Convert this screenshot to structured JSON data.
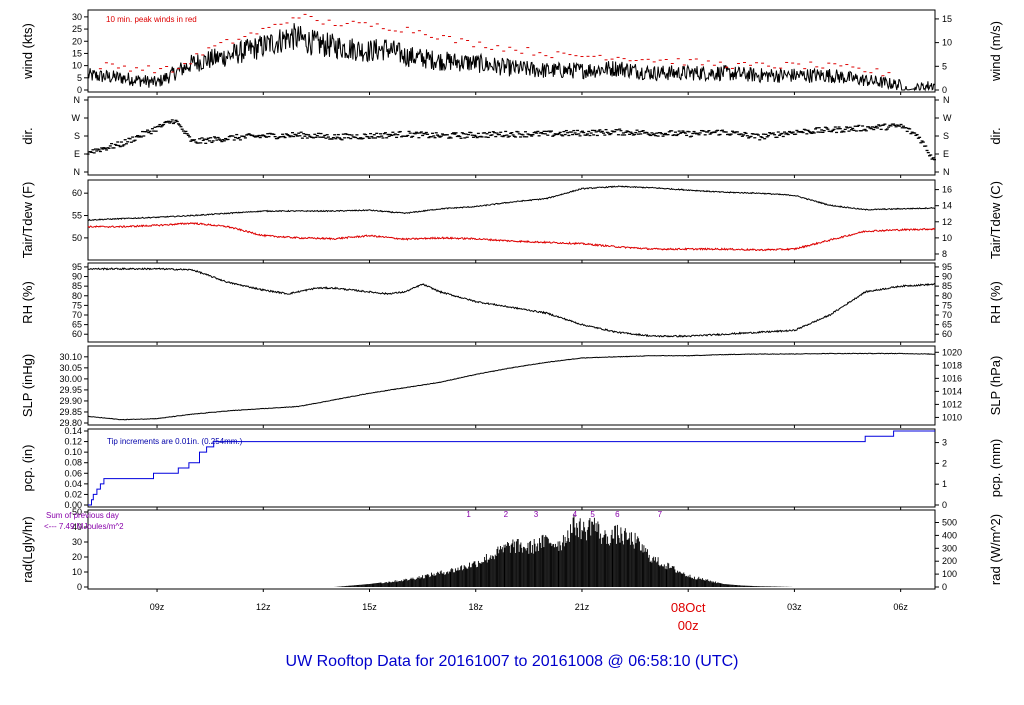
{
  "title": "UW Rooftop Data for 20161007  to  20161008 @ 06:58:10  (UTC)",
  "colors": {
    "title": "#0000cc",
    "date_marker": "#dd0000",
    "tair": "#000000",
    "tdew": "#dd0000",
    "peak": "#dd0000",
    "pcp": "#0000dd",
    "annot_blue": "#0000aa",
    "annot_purple": "#8800aa"
  },
  "x_axis": {
    "tick_labels": [
      "09z",
      "12z",
      "15z",
      "18z",
      "21z",
      "00z",
      "03z",
      "06z"
    ],
    "tick_hours": [
      9,
      12,
      15,
      18,
      21,
      24,
      27,
      30
    ],
    "range_hours": [
      7.05,
      30.97
    ],
    "date_marker_day": "08Oct",
    "date_marker_hour": "00z"
  },
  "chart_data": [
    {
      "type": "line",
      "panel": "wind",
      "ylabel_left": "wind (kts)",
      "ylabel_right": "wind (m/s)",
      "ylim": [
        0,
        32
      ],
      "left_ticks": [
        0,
        5,
        10,
        15,
        20,
        25,
        30
      ],
      "right_ticks": [
        0,
        5,
        10,
        15
      ],
      "right_factor": 0.5144,
      "annotation": "10 min. peak winds in red",
      "series": [
        {
          "name": "wind",
          "x": [
            7.05,
            8,
            9,
            10,
            11,
            12,
            12.8,
            13.5,
            14,
            15,
            15.5,
            16,
            17,
            18,
            19,
            20,
            21,
            22,
            23,
            24,
            25,
            26,
            27,
            28,
            29,
            30,
            30.2,
            30.9
          ],
          "values": [
            6,
            5,
            3,
            11,
            14,
            18,
            22,
            19,
            18,
            16,
            17,
            14,
            12,
            11,
            9,
            8,
            8,
            9,
            7,
            7,
            7,
            6,
            6,
            6,
            4,
            2,
            0,
            2
          ]
        },
        {
          "name": "10 min. peak winds",
          "x": [
            7.5,
            8.5,
            9.5,
            10.5,
            11.5,
            12.5,
            13,
            13.5,
            14.5,
            15.5,
            16.5,
            17.5,
            18.5,
            19.5,
            20.5,
            21.5,
            22.5,
            23.5,
            24.5,
            25.5,
            26.5,
            27.5,
            28.5,
            29.5
          ],
          "values": [
            10,
            9,
            8,
            17,
            22,
            27,
            31,
            28,
            27,
            26,
            24,
            20,
            18,
            16,
            14,
            14,
            13,
            12,
            11,
            10,
            10,
            10,
            9,
            7
          ]
        }
      ]
    },
    {
      "type": "scatter",
      "panel": "dir",
      "ylabel_left": "dir.",
      "ylabel_right": "dir.",
      "tick_labels": [
        "N",
        "W",
        "S",
        "E",
        "N"
      ],
      "tick_degrees": [
        360,
        270,
        180,
        90,
        0
      ],
      "series": [
        {
          "name": "direction",
          "x": [
            7.05,
            8,
            9,
            9.5,
            10,
            11,
            12,
            13,
            14,
            15,
            16,
            17,
            18,
            19,
            20,
            21,
            22,
            23,
            24,
            25,
            26,
            27,
            28,
            29,
            30,
            30.5,
            30.9
          ],
          "values": [
            100,
            140,
            220,
            260,
            150,
            170,
            180,
            185,
            175,
            180,
            190,
            180,
            185,
            190,
            190,
            195,
            200,
            195,
            190,
            200,
            175,
            200,
            210,
            220,
            230,
            180,
            70
          ]
        }
      ]
    },
    {
      "type": "line",
      "panel": "temperature",
      "ylabel_left": "Tair/Tdew (F)",
      "ylabel_right": "Tair/Tdew (C)",
      "ylim": [
        45.5,
        62.5
      ],
      "left_ticks": [
        50,
        55,
        60
      ],
      "right_ticks": [
        8,
        10,
        12,
        14,
        16
      ],
      "series": [
        {
          "name": "Tair",
          "x": [
            7.05,
            8,
            9,
            10,
            11,
            12,
            13,
            14,
            15,
            16,
            17,
            18,
            19,
            20,
            21,
            22,
            23,
            24,
            25,
            26,
            27,
            28,
            29,
            30,
            30.97
          ],
          "values": [
            54,
            54.3,
            54.6,
            55,
            55.5,
            56,
            56,
            56,
            56.2,
            55.5,
            56.5,
            57,
            58,
            58.8,
            61,
            61.5,
            61.2,
            60.7,
            60.2,
            60,
            59.5,
            57.3,
            56.3,
            56.5,
            56.7
          ]
        },
        {
          "name": "Tdew",
          "x": [
            7.05,
            8,
            9,
            10,
            11,
            12,
            13,
            14,
            15,
            16,
            17,
            18,
            19,
            20,
            21,
            22,
            23,
            24,
            25,
            26,
            27,
            28,
            29,
            30,
            30.97
          ],
          "values": [
            52.5,
            52.5,
            52.8,
            53.3,
            52.5,
            50.5,
            50,
            49.8,
            50.5,
            49.7,
            50,
            49.8,
            49.3,
            49,
            48.7,
            48,
            47.5,
            47.5,
            47.5,
            47.3,
            47.5,
            49.5,
            51.5,
            51.8,
            52
          ]
        }
      ]
    },
    {
      "type": "line",
      "panel": "rh",
      "ylabel_left": "RH (%)",
      "ylabel_right": "RH (%)",
      "ylim": [
        57,
        96
      ],
      "left_ticks": [
        60,
        65,
        70,
        75,
        80,
        85,
        90,
        95
      ],
      "right_ticks": [
        60,
        65,
        70,
        75,
        80,
        85,
        90,
        95
      ],
      "series": [
        {
          "name": "RH",
          "x": [
            7.05,
            8,
            9,
            10,
            11,
            12,
            12.7,
            13.5,
            14,
            15,
            15.5,
            16,
            16.5,
            17,
            18,
            19,
            20,
            21,
            22,
            23,
            24,
            25,
            26,
            27,
            28,
            29,
            30,
            30.97
          ],
          "values": [
            94,
            94,
            94,
            93.5,
            87,
            83,
            81,
            84,
            84,
            82,
            81,
            82,
            86,
            82,
            77,
            74,
            71,
            65,
            61,
            59,
            59,
            60,
            61,
            62,
            70,
            82,
            85,
            86
          ]
        }
      ]
    },
    {
      "type": "line",
      "panel": "slp",
      "ylabel_left": "SLP (inHg)",
      "ylabel_right": "SLP (hPa)",
      "ylim": [
        29.8,
        30.14
      ],
      "left_ticks": [
        29.8,
        29.85,
        29.9,
        29.95,
        30.0,
        30.05,
        30.1
      ],
      "right_ticks": [
        1010,
        1012,
        1014,
        1016,
        1018,
        1020
      ],
      "series": [
        {
          "name": "SLP",
          "x": [
            7.05,
            8,
            9,
            10,
            11,
            12,
            13,
            14,
            15,
            16,
            17,
            18,
            19,
            20,
            21,
            22,
            23,
            24,
            25,
            26,
            27,
            28,
            29,
            30,
            30.97
          ],
          "values": [
            29.83,
            29.815,
            29.82,
            29.84,
            29.855,
            29.865,
            29.875,
            29.905,
            29.935,
            29.96,
            29.985,
            30.02,
            30.05,
            30.075,
            30.095,
            30.1,
            30.105,
            30.105,
            30.11,
            30.113,
            30.113,
            30.115,
            30.115,
            30.115,
            30.112
          ]
        }
      ]
    },
    {
      "type": "line",
      "panel": "pcp",
      "ylabel_left": "pcp. (in)",
      "ylabel_right": "pcp. (mm)",
      "ylim": [
        0,
        0.14
      ],
      "left_ticks": [
        0.0,
        0.02,
        0.04,
        0.06,
        0.08,
        0.1,
        0.12,
        0.14
      ],
      "left_tick_labels": [
        "0.00",
        "0.02",
        "0.04",
        "0.06",
        "0.08",
        "0.10",
        "0.12",
        "0.14"
      ],
      "right_ticks": [
        0,
        1,
        2,
        3
      ],
      "annotation": "Tip increments are 0.01in. (0.254mm.)",
      "series": [
        {
          "name": "precip",
          "x": [
            7.05,
            7.15,
            7.2,
            7.3,
            7.4,
            7.5,
            8.0,
            8.9,
            9.6,
            9.9,
            10.2,
            10.4,
            10.6,
            29.0,
            29.8,
            30.97
          ],
          "values": [
            0,
            0.01,
            0.02,
            0.03,
            0.04,
            0.05,
            0.05,
            0.06,
            0.07,
            0.08,
            0.1,
            0.11,
            0.12,
            0.13,
            0.14,
            0.14
          ]
        }
      ]
    },
    {
      "type": "area",
      "panel": "radiation",
      "ylabel_left": "rad(Lgly/hr)",
      "ylabel_right": "rad (W/m^2)",
      "ylim": [
        0,
        50
      ],
      "left_ticks": [
        0,
        10,
        20,
        30,
        40,
        50
      ],
      "right_ticks": [
        0,
        100,
        200,
        300,
        400,
        500
      ],
      "right_factor": 11.63,
      "annotation_line1": "Sum of previous day",
      "annotation_line2": "<--- 7.49 MJoules/m^2",
      "peak_labels": [
        "1",
        "2",
        "3",
        "4",
        "5",
        "6",
        "7"
      ],
      "peak_hours": [
        17.8,
        18.85,
        19.7,
        20.8,
        21.3,
        22.0,
        23.2
      ],
      "series": [
        {
          "name": "radiation",
          "x": [
            14,
            15,
            16,
            17,
            17.5,
            18,
            18.5,
            19,
            19.5,
            20,
            20.4,
            20.8,
            21.1,
            21.3,
            21.6,
            22,
            22.5,
            23,
            23.5,
            24,
            24.5,
            25,
            25.5,
            26,
            26.5,
            27
          ],
          "values": [
            0,
            2,
            5,
            10,
            13,
            17,
            23,
            30,
            28,
            33,
            31,
            45,
            40,
            47,
            35,
            38,
            33,
            20,
            14,
            8,
            5,
            2,
            1,
            0.5,
            0.3,
            0
          ]
        }
      ]
    }
  ]
}
